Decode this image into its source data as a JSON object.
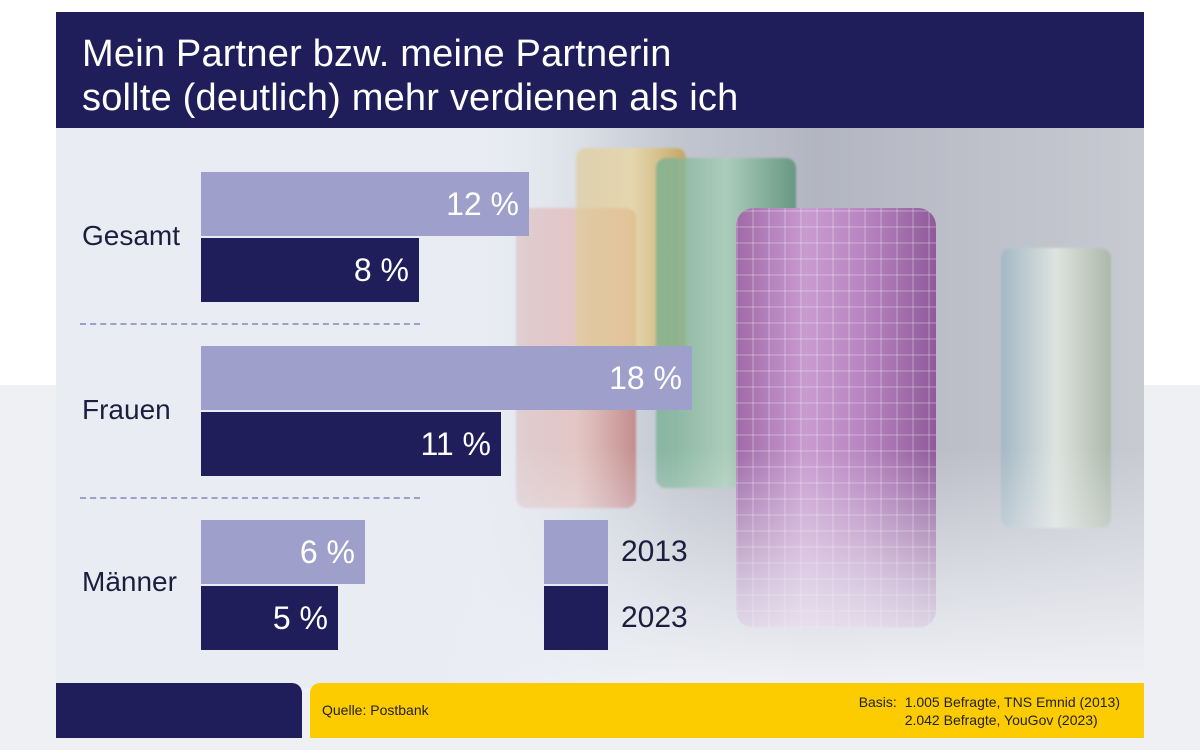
{
  "title": {
    "line1": "Mein Partner bzw. meine Partnerin",
    "line2": "sollte (deutlich) mehr verdienen als ich"
  },
  "chart_data": {
    "type": "bar",
    "orientation": "horizontal",
    "categories": [
      "Gesamt",
      "Frauen",
      "Männer"
    ],
    "series": [
      {
        "name": "2013",
        "values": [
          12,
          18,
          6
        ],
        "labels": [
          "12 %",
          "18 %",
          "6 %"
        ],
        "color": "#9f9fcb"
      },
      {
        "name": "2023",
        "values": [
          8,
          11,
          5
        ],
        "labels": [
          "8 %",
          "11 %",
          "5 %"
        ],
        "color": "#1f1e5a"
      }
    ],
    "unit": "%",
    "xlim": [
      0,
      18
    ],
    "legend_position": "bottom-right"
  },
  "footer": {
    "source": "Quelle: Postbank",
    "basis_label": "Basis:",
    "basis_lines": [
      "1.005 Befragte, TNS Emnid (2013)",
      "2.042 Befragte, YouGov (2023)"
    ]
  },
  "colors": {
    "navy": "#1f1e5a",
    "lavender": "#9f9fcb",
    "yellow": "#fdcc00"
  }
}
